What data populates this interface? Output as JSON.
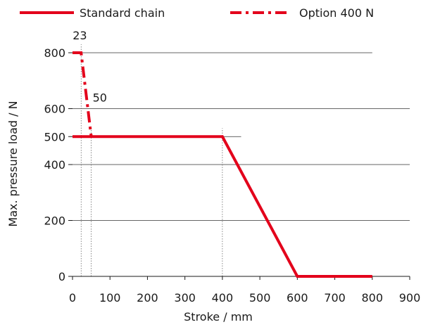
{
  "chart_data": {
    "type": "line",
    "title": "",
    "xlabel": "Stroke / mm",
    "ylabel": "Max. pressure load / N",
    "xlim": [
      0,
      900
    ],
    "ylim": [
      0,
      800
    ],
    "x_ticks": [
      "0",
      "100",
      "200",
      "300",
      "400",
      "500",
      "600",
      "700",
      "800",
      "900"
    ],
    "y_ticks": [
      "0",
      "200",
      "400",
      "500",
      "600",
      "800"
    ],
    "grid": "horizontal",
    "legend_position": "top",
    "series": [
      {
        "name": "Standard chain",
        "style": "solid",
        "color": "#e3001b",
        "points": [
          [
            0,
            500
          ],
          [
            400,
            500
          ],
          [
            600,
            0
          ],
          [
            800,
            0
          ]
        ]
      },
      {
        "name": "Option 400 N",
        "style": "dash-dot",
        "color": "#e3001b",
        "points": [
          [
            0,
            800
          ],
          [
            23,
            800
          ],
          [
            50,
            500
          ]
        ]
      }
    ],
    "annotations": [
      {
        "text": "23",
        "x": 23,
        "y": 800
      },
      {
        "text": "50",
        "x": 50,
        "y": 600
      }
    ]
  }
}
